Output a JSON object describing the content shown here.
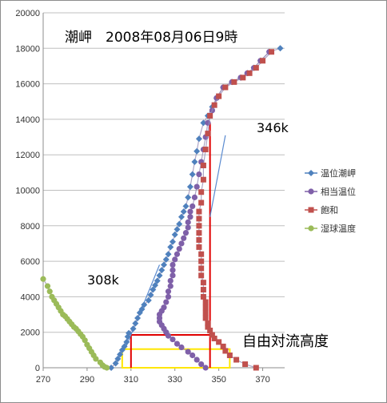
{
  "chart_data": {
    "type": "scatter",
    "title": "潮岬　2008年08月06日9時",
    "xlabel": "",
    "ylabel": "",
    "xlim": [
      270,
      380
    ],
    "ylim": [
      0,
      20000
    ],
    "x_ticks": [
      "270",
      "290",
      "310",
      "330",
      "350",
      "370"
    ],
    "y_ticks": [
      "0",
      "2000",
      "4000",
      "6000",
      "8000",
      "10000",
      "12000",
      "14000",
      "16000",
      "18000",
      "20000"
    ],
    "grid": "horizontal",
    "legend_position": "right",
    "series": [
      {
        "name": "温位潮岬",
        "color": "#4F81BD",
        "marker": "diamond",
        "points": [
          [
            301,
            0
          ],
          [
            303,
            250
          ],
          [
            304,
            500
          ],
          [
            305,
            750
          ],
          [
            306,
            1000
          ],
          [
            307,
            1200
          ],
          [
            308,
            1450
          ],
          [
            308.5,
            1750
          ],
          [
            309,
            1950
          ],
          [
            311,
            2200
          ],
          [
            312,
            2500
          ],
          [
            313,
            2800
          ],
          [
            314,
            3100
          ],
          [
            315,
            3300
          ],
          [
            316,
            3550
          ],
          [
            318,
            3800
          ],
          [
            319,
            4100
          ],
          [
            320,
            4400
          ],
          [
            321,
            4650
          ],
          [
            322,
            4900
          ],
          [
            323,
            5200
          ],
          [
            324,
            5500
          ],
          [
            325,
            5800
          ],
          [
            326,
            6100
          ],
          [
            327,
            6400
          ],
          [
            328,
            6800
          ],
          [
            329,
            7100
          ],
          [
            330,
            7500
          ],
          [
            331,
            7800
          ],
          [
            332,
            8100
          ],
          [
            333,
            8500
          ],
          [
            334,
            8800
          ],
          [
            335,
            9100
          ],
          [
            336,
            9600
          ],
          [
            337,
            10200
          ],
          [
            338,
            10900
          ],
          [
            339,
            11600
          ],
          [
            340,
            12200
          ],
          [
            341,
            12900
          ],
          [
            343,
            13800
          ],
          [
            345,
            14200
          ],
          [
            347,
            14700
          ],
          [
            349,
            15200
          ],
          [
            352,
            15800
          ],
          [
            356,
            16100
          ],
          [
            360,
            16350
          ],
          [
            363,
            16600
          ],
          [
            366,
            16900
          ],
          [
            369,
            17300
          ],
          [
            373,
            17800
          ],
          [
            378,
            18000
          ]
        ]
      },
      {
        "name": "相当温位",
        "color": "#7F60A8",
        "marker": "circle",
        "points": [
          [
            344,
            0
          ],
          [
            342,
            200
          ],
          [
            340,
            450
          ],
          [
            338,
            700
          ],
          [
            336,
            900
          ],
          [
            333,
            1150
          ],
          [
            331,
            1350
          ],
          [
            329,
            1600
          ],
          [
            327,
            1800
          ],
          [
            326,
            2000
          ],
          [
            325,
            2200
          ],
          [
            324,
            2400
          ],
          [
            323,
            2600
          ],
          [
            323,
            2800
          ],
          [
            323,
            3000
          ],
          [
            324,
            3200
          ],
          [
            325,
            3400
          ],
          [
            326,
            3700
          ],
          [
            327,
            4000
          ],
          [
            327,
            4300
          ],
          [
            328,
            4600
          ],
          [
            328,
            4900
          ],
          [
            329,
            5200
          ],
          [
            329,
            5500
          ],
          [
            329,
            5800
          ],
          [
            330,
            6100
          ],
          [
            331,
            6400
          ],
          [
            332,
            6700
          ],
          [
            333,
            7000
          ],
          [
            334,
            7300
          ],
          [
            335,
            7600
          ],
          [
            336,
            7900
          ],
          [
            336,
            8200
          ],
          [
            337,
            8500
          ],
          [
            337,
            8800
          ],
          [
            338,
            9100
          ],
          [
            339,
            9600
          ],
          [
            340,
            10200
          ],
          [
            341,
            10900
          ],
          [
            342,
            11600
          ],
          [
            343,
            12300
          ],
          [
            344,
            13000
          ],
          [
            345,
            13800
          ],
          [
            347,
            14500
          ],
          [
            349,
            15200
          ],
          [
            352,
            15800
          ],
          [
            356,
            16100
          ],
          [
            360,
            16350
          ],
          [
            363,
            16600
          ],
          [
            366,
            16900
          ],
          [
            369,
            17300
          ],
          [
            373,
            17800
          ]
        ]
      },
      {
        "name": "飽和",
        "color": "#C0504D",
        "marker": "square",
        "points": [
          [
            367,
            0
          ],
          [
            362,
            200
          ],
          [
            358,
            450
          ],
          [
            355,
            700
          ],
          [
            353,
            950
          ],
          [
            352,
            1200
          ],
          [
            350,
            1450
          ],
          [
            348,
            1650
          ],
          [
            347,
            1850
          ],
          [
            346,
            2100
          ],
          [
            345,
            2300
          ],
          [
            345,
            2500
          ],
          [
            344,
            2800
          ],
          [
            344,
            3100
          ],
          [
            344,
            3400
          ],
          [
            344,
            3700
          ],
          [
            343,
            4000
          ],
          [
            343,
            4400
          ],
          [
            343,
            4800
          ],
          [
            342,
            5200
          ],
          [
            342,
            5600
          ],
          [
            342,
            6000
          ],
          [
            342,
            6400
          ],
          [
            341,
            6800
          ],
          [
            341,
            7200
          ],
          [
            341,
            7600
          ],
          [
            341,
            8000
          ],
          [
            341,
            8400
          ],
          [
            341,
            8800
          ],
          [
            342,
            9300
          ],
          [
            342,
            9900
          ],
          [
            343,
            10600
          ],
          [
            343,
            11400
          ],
          [
            344,
            12300
          ],
          [
            345,
            13200
          ],
          [
            346,
            14200
          ],
          [
            348,
            14800
          ],
          [
            350,
            15300
          ],
          [
            353,
            15800
          ],
          [
            357,
            16100
          ],
          [
            361,
            16350
          ],
          [
            364,
            16600
          ],
          [
            367,
            16900
          ],
          [
            370,
            17300
          ],
          [
            374,
            17800
          ]
        ]
      },
      {
        "name": "湿球温度",
        "color": "#9BBB59",
        "marker": "circle",
        "points": [
          [
            270,
            5000
          ],
          [
            272,
            4600
          ],
          [
            273,
            4300
          ],
          [
            274,
            4000
          ],
          [
            275,
            3800
          ],
          [
            276,
            3600
          ],
          [
            277,
            3400
          ],
          [
            278,
            3200
          ],
          [
            279,
            3000
          ],
          [
            280,
            2900
          ],
          [
            281,
            2750
          ],
          [
            282,
            2600
          ],
          [
            283,
            2450
          ],
          [
            284,
            2300
          ],
          [
            285,
            2200
          ],
          [
            286,
            2050
          ],
          [
            287,
            1900
          ],
          [
            288,
            1750
          ],
          [
            289,
            1550
          ],
          [
            290,
            1300
          ],
          [
            291,
            1100
          ],
          [
            292,
            900
          ],
          [
            293,
            700
          ],
          [
            294,
            500
          ],
          [
            296,
            300
          ],
          [
            297,
            150
          ],
          [
            298,
            50
          ],
          [
            299,
            0
          ]
        ]
      }
    ],
    "overlays": {
      "red_vertical_left_x": 310,
      "red_vertical_right_x": 346,
      "red_vertical_right_top": 13800,
      "red_box_top_y": 1850,
      "yellow_box": {
        "x1": 306,
        "x2": 355,
        "y1": 0,
        "y2": 1050
      },
      "blue_line_left": {
        "from_x": 323,
        "from_y": 5800,
        "to_x": 308,
        "to_y": 1250
      },
      "blue_line_right": {
        "from_x": 353,
        "from_y": 13100,
        "to_x": 346,
        "to_y": 8500
      }
    },
    "annotations": {
      "left_label": "308k",
      "right_label": "346k",
      "bottom_label": "自由対流高度"
    }
  }
}
